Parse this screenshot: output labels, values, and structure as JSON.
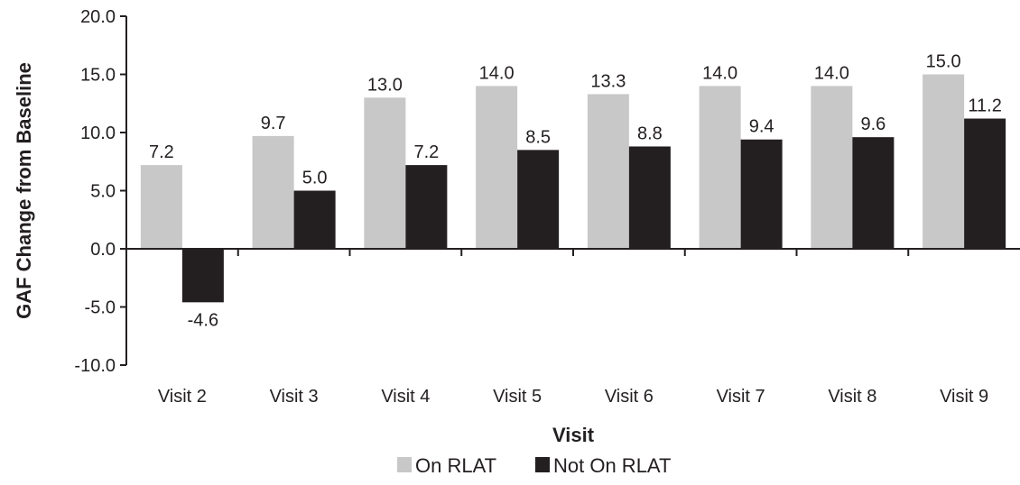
{
  "chart_data": {
    "type": "bar",
    "categories": [
      "Visit 2",
      "Visit 3",
      "Visit 4",
      "Visit 5",
      "Visit 6",
      "Visit 7",
      "Visit 8",
      "Visit 9"
    ],
    "series": [
      {
        "name": "On RLAT",
        "color": "#c8c8c8",
        "values": [
          7.2,
          9.7,
          13.0,
          14.0,
          13.3,
          14.0,
          14.0,
          15.0
        ]
      },
      {
        "name": "Not On RLAT",
        "color": "#231f20",
        "values": [
          -4.6,
          5.0,
          7.2,
          8.5,
          8.8,
          9.4,
          9.6,
          11.2
        ]
      }
    ],
    "data_labels": [
      [
        "7.2",
        "9.7",
        "13.0",
        "14.0",
        "13.3",
        "14.0",
        "14.0",
        "15.0"
      ],
      [
        "-4.6",
        "5.0",
        "7.2",
        "8.5",
        "8.8",
        "9.4",
        "9.6",
        "11.2"
      ]
    ],
    "xlabel": "Visit",
    "ylabel": "GAF Change from Baseline",
    "ylim": [
      -10,
      20
    ],
    "yticks": [
      20,
      15,
      10,
      5,
      0,
      -5,
      -10
    ],
    "ytick_labels": [
      "20.0",
      "15.0",
      "10.0",
      "5.0",
      "0.0",
      "-5.0",
      "-10.0"
    ],
    "grid": false,
    "legend_position": "bottom"
  }
}
